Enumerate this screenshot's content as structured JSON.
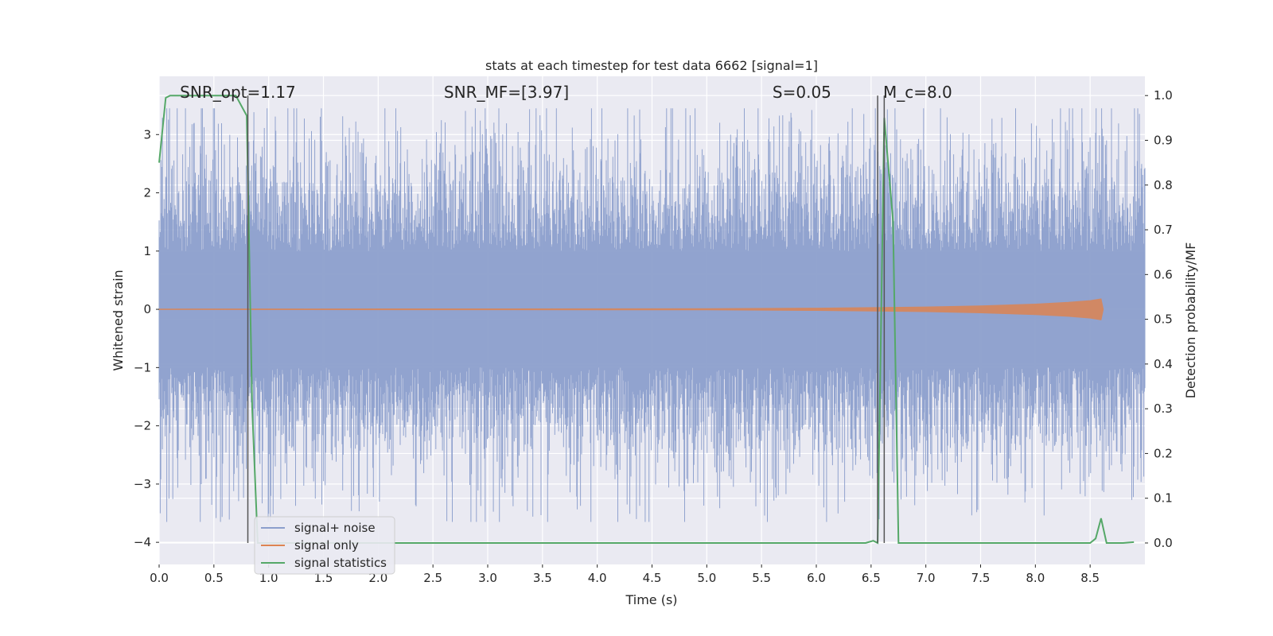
{
  "chart_data": {
    "type": "line",
    "title": "stats at each timestep for test data 6662 [signal=1]",
    "xlabel": "Time (s)",
    "ylabel": "Whitened strain",
    "ylabel_right": "Detection probability/MF",
    "xlim": [
      0.0,
      9.0
    ],
    "ylim": [
      -4.38,
      4.0
    ],
    "ylim_right": [
      -0.048,
      1.043
    ],
    "x_ticks": [
      "0.0",
      "0.5",
      "1.0",
      "1.5",
      "2.0",
      "2.5",
      "3.0",
      "3.5",
      "4.0",
      "4.5",
      "5.0",
      "5.5",
      "6.0",
      "6.5",
      "7.0",
      "7.5",
      "8.0",
      "8.5"
    ],
    "y_ticks": [
      "3",
      "2",
      "1",
      "0",
      "−1",
      "−2",
      "−3",
      "−4"
    ],
    "y_ticks_right": [
      "1.0",
      "0.9",
      "0.8",
      "0.7",
      "0.6",
      "0.5",
      "0.4",
      "0.3",
      "0.2",
      "0.1",
      "0.0"
    ],
    "grid": true,
    "legend_position": "lower-left",
    "annotations": [
      {
        "label": "SNR_opt=1.17",
        "x": 0.19
      },
      {
        "label": "SNR_MF=[3.97]",
        "x": 2.6
      },
      {
        "label": "S=0.05",
        "x": 5.6
      },
      {
        "label": "M_c=8.0",
        "x": 6.61
      }
    ],
    "vlines": [
      0.81,
      6.56,
      6.62
    ],
    "series": [
      {
        "name": "signal+ noise",
        "color": "#8c9fcc",
        "description_stat": "dense whitened noise, std approx 1.0",
        "sample_count": 1800,
        "envelope_min": -3.65,
        "envelope_max": 3.45
      },
      {
        "name": "signal only",
        "color": "#dd8452",
        "x": [
          0.0,
          5.0,
          6.0,
          7.0,
          7.5,
          8.0,
          8.3,
          8.5,
          8.6,
          8.62
        ],
        "amplitude": [
          0.005,
          0.01,
          0.02,
          0.04,
          0.06,
          0.09,
          0.12,
          0.15,
          0.18,
          0.0
        ]
      },
      {
        "name": "signal statistics",
        "color": "#55a868",
        "axis": "right",
        "x": [
          0.0,
          0.06,
          0.1,
          0.2,
          0.3,
          0.4,
          0.5,
          0.6,
          0.7,
          0.8,
          0.85,
          0.9,
          1.0,
          2.0,
          3.0,
          4.0,
          5.0,
          6.0,
          6.45,
          6.52,
          6.56,
          6.62,
          6.7,
          6.75,
          7.0,
          8.0,
          8.5,
          8.55,
          8.6,
          8.65,
          8.7,
          8.8,
          8.9
        ],
        "y": [
          0.85,
          0.995,
          1.0,
          1.0,
          1.0,
          1.0,
          1.0,
          1.0,
          1.0,
          0.955,
          0.3,
          0.0,
          0.0,
          0.0,
          0.0,
          0.0,
          0.0,
          0.0,
          0.0,
          0.005,
          0.0,
          0.95,
          0.72,
          0.0,
          0.0,
          0.0,
          0.0,
          0.01,
          0.055,
          0.0,
          0.0,
          0.0,
          0.002
        ]
      }
    ]
  },
  "legend": {
    "items": [
      {
        "label": "signal+ noise",
        "color": "#8c9fcc"
      },
      {
        "label": "signal only",
        "color": "#dd8452"
      },
      {
        "label": "signal statistics",
        "color": "#55a868"
      }
    ]
  }
}
